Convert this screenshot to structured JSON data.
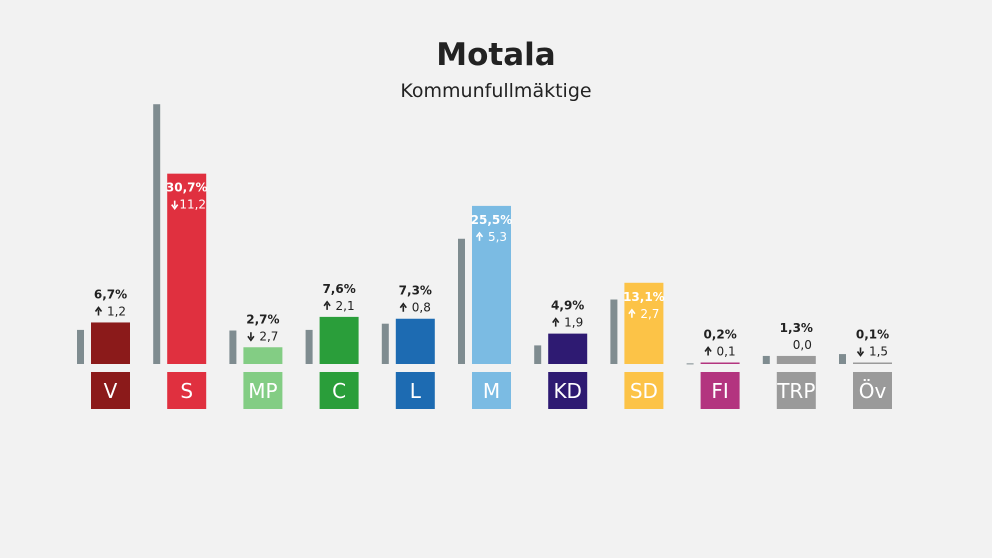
{
  "title": "Motala",
  "subtitle": "Kommunfullmäktige",
  "chart_data": {
    "type": "bar",
    "title": "Motala",
    "subtitle": "Kommunfullmäktige",
    "categories": [
      "V",
      "S",
      "MP",
      "C",
      "L",
      "M",
      "KD",
      "SD",
      "FI",
      "TRP",
      "Öv"
    ],
    "series": [
      {
        "values": [
          5.5,
          41.9,
          5.4,
          5.5,
          6.5,
          20.2,
          3.0,
          10.4,
          0.1,
          1.3,
          1.6
        ],
        "color": "#7f8c90"
      },
      {
        "values": [
          6.7,
          30.7,
          2.7,
          7.6,
          7.3,
          25.5,
          4.9,
          13.1,
          0.2,
          1.3,
          0.1
        ]
      }
    ],
    "value_labels": [
      "6,7%",
      "30,7%",
      "2,7%",
      "7,6%",
      "7,3%",
      "25,5%",
      "4,9%",
      "13,1%",
      "0,2%",
      "1,3%",
      "0,1%"
    ],
    "change_labels": [
      "1,2",
      "11,2",
      "2,7",
      "2,1",
      "0,8",
      "5,3",
      "1,9",
      "2,7",
      "0,1",
      "0,0",
      "1,5"
    ],
    "change_direction": [
      "up",
      "down",
      "down",
      "up",
      "up",
      "up",
      "up",
      "up",
      "up",
      "none",
      "down"
    ],
    "label_inside": [
      false,
      true,
      false,
      false,
      false,
      true,
      false,
      true,
      false,
      false,
      false
    ],
    "colors": [
      "#8b1a1a",
      "#e0303f",
      "#83cd84",
      "#2a9e3a",
      "#1d6bb2",
      "#7bbbe3",
      "#2e1a72",
      "#fcc347",
      "#b3347f",
      "#9a9a9a",
      "#9a9a9a"
    ],
    "ylim": [
      0,
      42
    ],
    "grid": false
  }
}
